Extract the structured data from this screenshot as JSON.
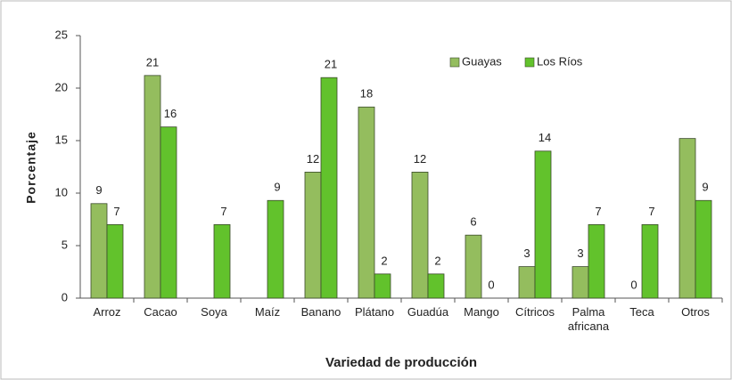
{
  "chart_data": {
    "type": "bar",
    "x_label": "Variedad de producción",
    "y_label": "Porcentaje",
    "categories": [
      "Arroz",
      "Cacao",
      "Soya",
      "Maíz",
      "Banano",
      "Plátano",
      "Guadúa",
      "Mango",
      "Cítricos",
      "Palma africana",
      "Teca",
      "Otros"
    ],
    "series": [
      {
        "name": "Guayas",
        "color": "#94bd5e",
        "values": [
          9,
          21.2,
          null,
          null,
          12,
          18.2,
          12,
          6,
          3,
          3,
          0,
          15.2
        ],
        "value_labels": [
          "9",
          "21",
          null,
          null,
          "12",
          "18",
          "12",
          "6",
          "3",
          "3",
          "0",
          null
        ]
      },
      {
        "name": "Los Ríos",
        "color": "#62c22c",
        "values": [
          7,
          16.3,
          7,
          9.3,
          21,
          2.3,
          2.3,
          0,
          14,
          7,
          7,
          9.3
        ],
        "value_labels": [
          "7",
          "16",
          "7",
          "9",
          "21",
          "2",
          "2",
          "0",
          "14",
          "7",
          "7",
          "9"
        ]
      }
    ],
    "ylim": [
      0,
      25
    ],
    "yticks": [
      0,
      5,
      10,
      15,
      20,
      25
    ],
    "grid": false,
    "legend": "top-right"
  }
}
